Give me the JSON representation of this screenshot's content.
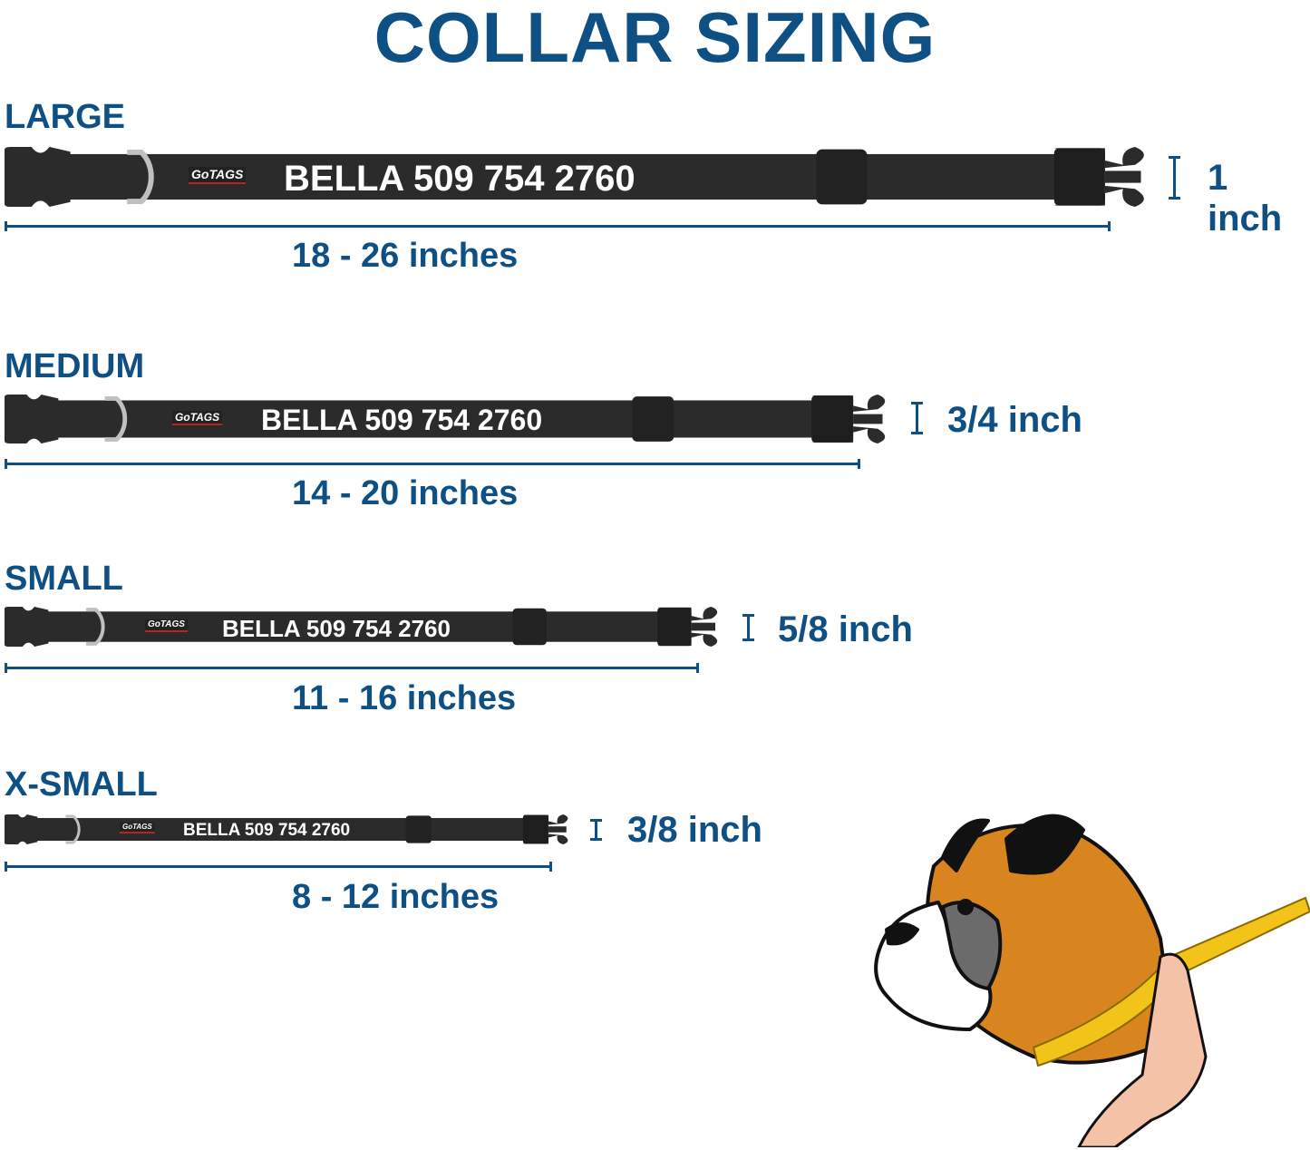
{
  "title": "COLLAR SIZING",
  "brand_logo": "GoTAGS",
  "colors": {
    "accent": "#0e4f84",
    "collar": "#2b2b2b",
    "ring": "#c0c0c0",
    "tape": "#f2c318"
  },
  "sizes": [
    {
      "label": "LARGE",
      "name_text": "BELLA 509 754 2760",
      "range": "18 - 26 inches",
      "width": "1 inch"
    },
    {
      "label": "MEDIUM",
      "name_text": "BELLA 509 754 2760",
      "range": "14 - 20 inches",
      "width": "3/4 inch"
    },
    {
      "label": "SMALL",
      "name_text": "BELLA 509 754 2760",
      "range": "11 - 16 inches",
      "width": "5/8 inch"
    },
    {
      "label": "X-SMALL",
      "name_text": "BELLA 509 754 2760",
      "range": "8 - 12 inches",
      "width": "3/8 inch"
    }
  ]
}
